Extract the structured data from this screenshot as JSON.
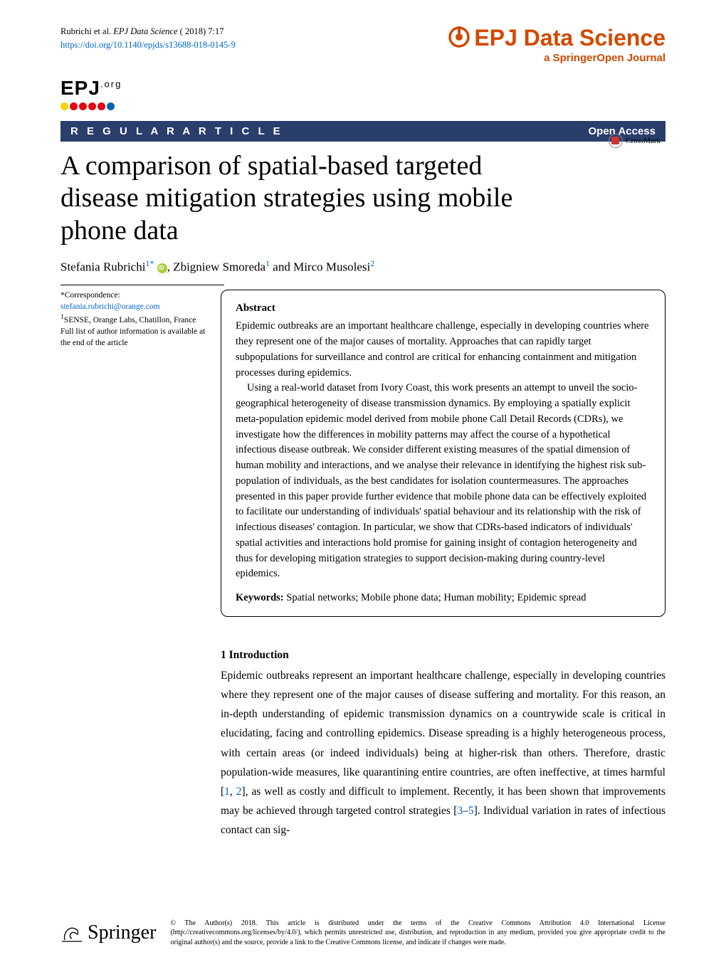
{
  "header": {
    "citation_authors": "Rubrichi et al.",
    "citation_journal": "EPJ Data Science",
    "citation_ref": "( 2018) 7:17",
    "doi_url": "https://doi.org/10.1140/epjds/s13688-018-0145-9",
    "journal_name": "EPJ Data Science",
    "journal_subtitle": "a SpringerOpen Journal"
  },
  "epj_logo": {
    "text": "EPJ",
    "suffix": ".org",
    "dot_colors": [
      "#f7d308",
      "#e30613",
      "#e30613",
      "#e30613",
      "#e30613",
      "#0066b3"
    ]
  },
  "bar": {
    "type": "R E G U L A R  A R T I C L E",
    "access": "Open Access"
  },
  "crossmark_label": "CrossMark",
  "title": "A comparison of spatial-based targeted disease mitigation strategies using mobile phone data",
  "authors": {
    "a1_name": "Stefania Rubrichi",
    "a1_sup": "1*",
    "a2_name": "Zbigniew Smoreda",
    "a2_sup": "1",
    "a3_name": "Mirco Musolesi",
    "a3_sup": "2",
    "sep_comma": ", ",
    "sep_and": " and "
  },
  "sidebar": {
    "corr_label": "*Correspondence:",
    "corr_email": "stefania.rubrichi@orange.com",
    "affil1_sup": "1",
    "affil1": "SENSE, Orange Labs, Chatillon, France",
    "full_list": "Full list of author information is available at the end of the article"
  },
  "abstract": {
    "heading": "Abstract",
    "p1": "Epidemic outbreaks are an important healthcare challenge, especially in developing countries where they represent one of the major causes of mortality. Approaches that can rapidly target subpopulations for surveillance and control are critical for enhancing containment and mitigation processes during epidemics.",
    "p2": "Using a real-world dataset from Ivory Coast, this work presents an attempt to unveil the socio-geographical heterogeneity of disease transmission dynamics. By employing a spatially explicit meta-population epidemic model derived from mobile phone Call Detail Records (CDRs), we investigate how the differences in mobility patterns may affect the course of a hypothetical infectious disease outbreak. We consider different existing measures of the spatial dimension of human mobility and interactions, and we analyse their relevance in identifying the highest risk sub-population of individuals, as the best candidates for isolation countermeasures. The approaches presented in this paper provide further evidence that mobile phone data can be effectively exploited to facilitate our understanding of individuals' spatial behaviour and its relationship with the risk of infectious diseases' contagion. In particular, we show that CDRs-based indicators of individuals' spatial activities and interactions hold promise for gaining insight of contagion heterogeneity and thus for developing mitigation strategies to support decision-making during country-level epidemics.",
    "keywords_label": "Keywords:",
    "keywords": "Spatial networks; Mobile phone data; Human mobility; Epidemic spread"
  },
  "intro": {
    "heading": "1 Introduction",
    "t1": "Epidemic outbreaks represent an important healthcare challenge, especially in developing countries where they represent one of the major causes of disease suffering and mortality. For this reason, an in-depth understanding of epidemic transmission dynamics on a countrywide scale is critical in elucidating, facing and controlling epidemics. Disease spreading is a highly heterogeneous process, with certain areas (or indeed individuals) being at higher-risk than others. Therefore, drastic population-wide measures, like quarantining entire countries, are often ineffective, at times harmful [",
    "r1": "1",
    "c1": ", ",
    "r2": "2",
    "t2": "], as well as costly and difficult to implement. Recently, it has been shown that improvements may be achieved through targeted control strategies [",
    "r3": "3",
    "dash": "–",
    "r5": "5",
    "t3": "]. Individual variation in rates of infectious contact can sig-"
  },
  "footer": {
    "springer": "Springer",
    "copyright": "© The Author(s) 2018. This article is distributed under the terms of the Creative Commons Attribution 4.0 International License (http://creativecommons.org/licenses/by/4.0/), which permits unrestricted use, distribution, and reproduction in any medium, provided you give appropriate credit to the original author(s) and the source, provide a link to the Creative Commons license, and indicate if changes were made."
  },
  "colors": {
    "brand_orange": "#d14900",
    "bar_bg": "#293e6b",
    "link": "#0066cc"
  }
}
